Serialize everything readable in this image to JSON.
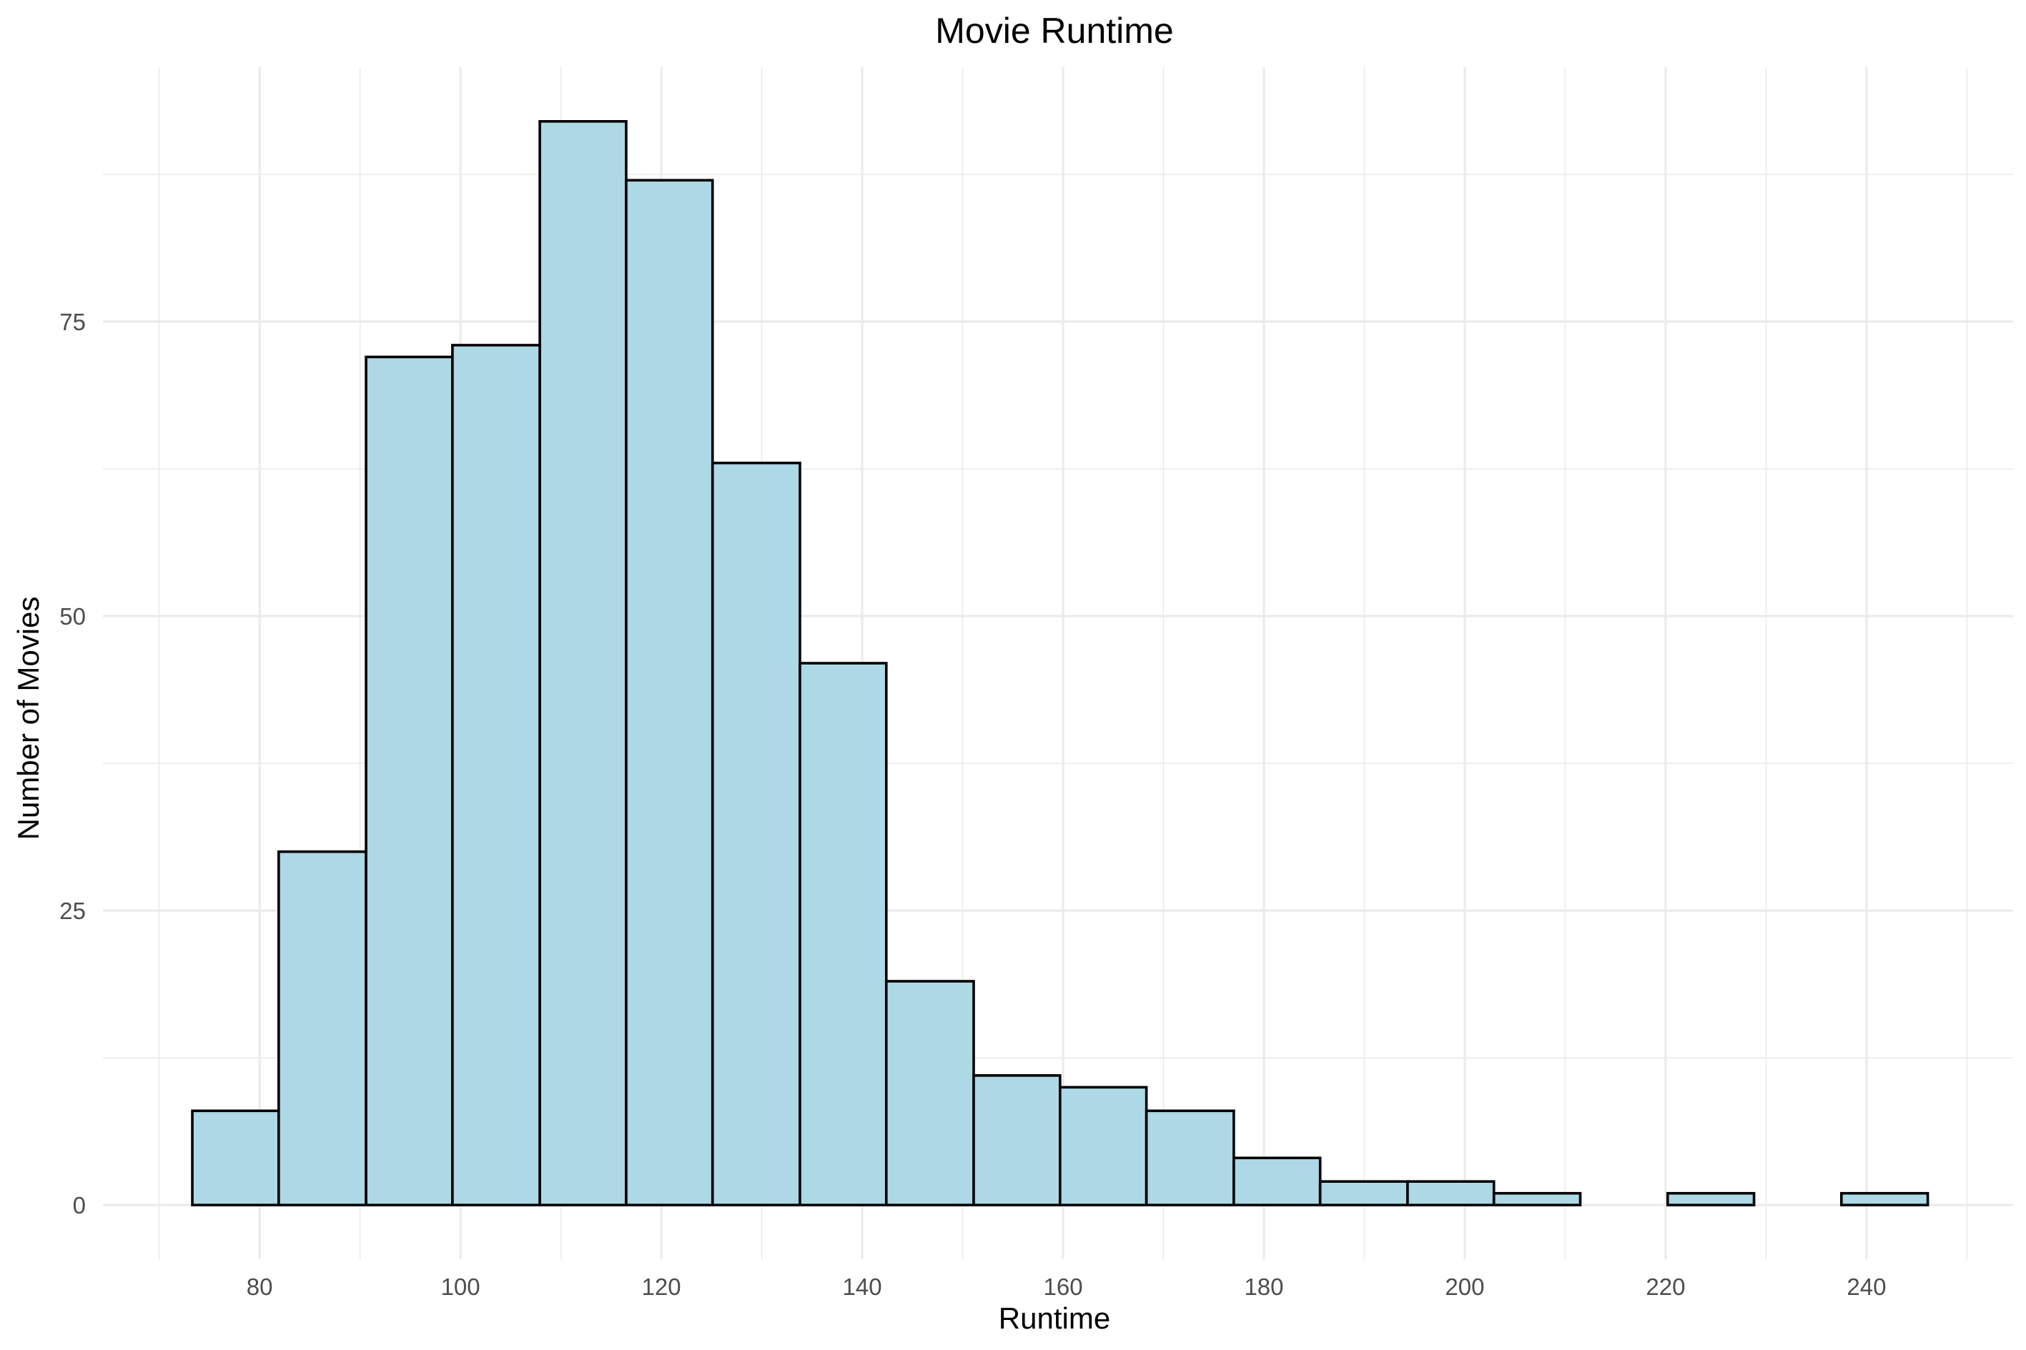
{
  "chart_data": {
    "type": "bar",
    "title": "Movie Runtime",
    "xlabel": "Runtime",
    "ylabel": "Number of Movies",
    "xlim": [
      64.4,
      254.6
    ],
    "ylim": [
      -4.6,
      96.6
    ],
    "x_ticks": [
      80,
      100,
      120,
      140,
      160,
      180,
      200,
      220,
      240
    ],
    "x_minor_ticks": [
      70,
      90,
      110,
      130,
      150,
      170,
      190,
      210,
      230,
      250
    ],
    "y_ticks": [
      0,
      25,
      50,
      75
    ],
    "y_minor_ticks": [
      12.5,
      37.5,
      62.5,
      87.5
    ],
    "grid": true,
    "legend": "none",
    "fill_color": "#add8e6",
    "border_color": "#000000",
    "grid_color": "#ebebeb",
    "bins": [
      {
        "start": 73.3,
        "end": 81.9,
        "count": 8
      },
      {
        "start": 81.9,
        "end": 90.6,
        "count": 30
      },
      {
        "start": 90.6,
        "end": 99.2,
        "count": 72
      },
      {
        "start": 99.2,
        "end": 107.9,
        "count": 73
      },
      {
        "start": 107.9,
        "end": 116.5,
        "count": 92
      },
      {
        "start": 116.5,
        "end": 125.1,
        "count": 87
      },
      {
        "start": 125.1,
        "end": 133.8,
        "count": 63
      },
      {
        "start": 133.8,
        "end": 142.4,
        "count": 46
      },
      {
        "start": 142.4,
        "end": 151.1,
        "count": 19
      },
      {
        "start": 151.1,
        "end": 159.7,
        "count": 11
      },
      {
        "start": 159.7,
        "end": 168.3,
        "count": 10
      },
      {
        "start": 168.3,
        "end": 177.0,
        "count": 8
      },
      {
        "start": 177.0,
        "end": 185.6,
        "count": 4
      },
      {
        "start": 185.6,
        "end": 194.3,
        "count": 2
      },
      {
        "start": 194.3,
        "end": 202.9,
        "count": 2
      },
      {
        "start": 202.9,
        "end": 211.5,
        "count": 1
      },
      {
        "start": 211.5,
        "end": 220.2,
        "count": 0
      },
      {
        "start": 220.2,
        "end": 228.8,
        "count": 1
      },
      {
        "start": 228.8,
        "end": 237.5,
        "count": 0
      },
      {
        "start": 237.5,
        "end": 246.1,
        "count": 1
      }
    ]
  }
}
